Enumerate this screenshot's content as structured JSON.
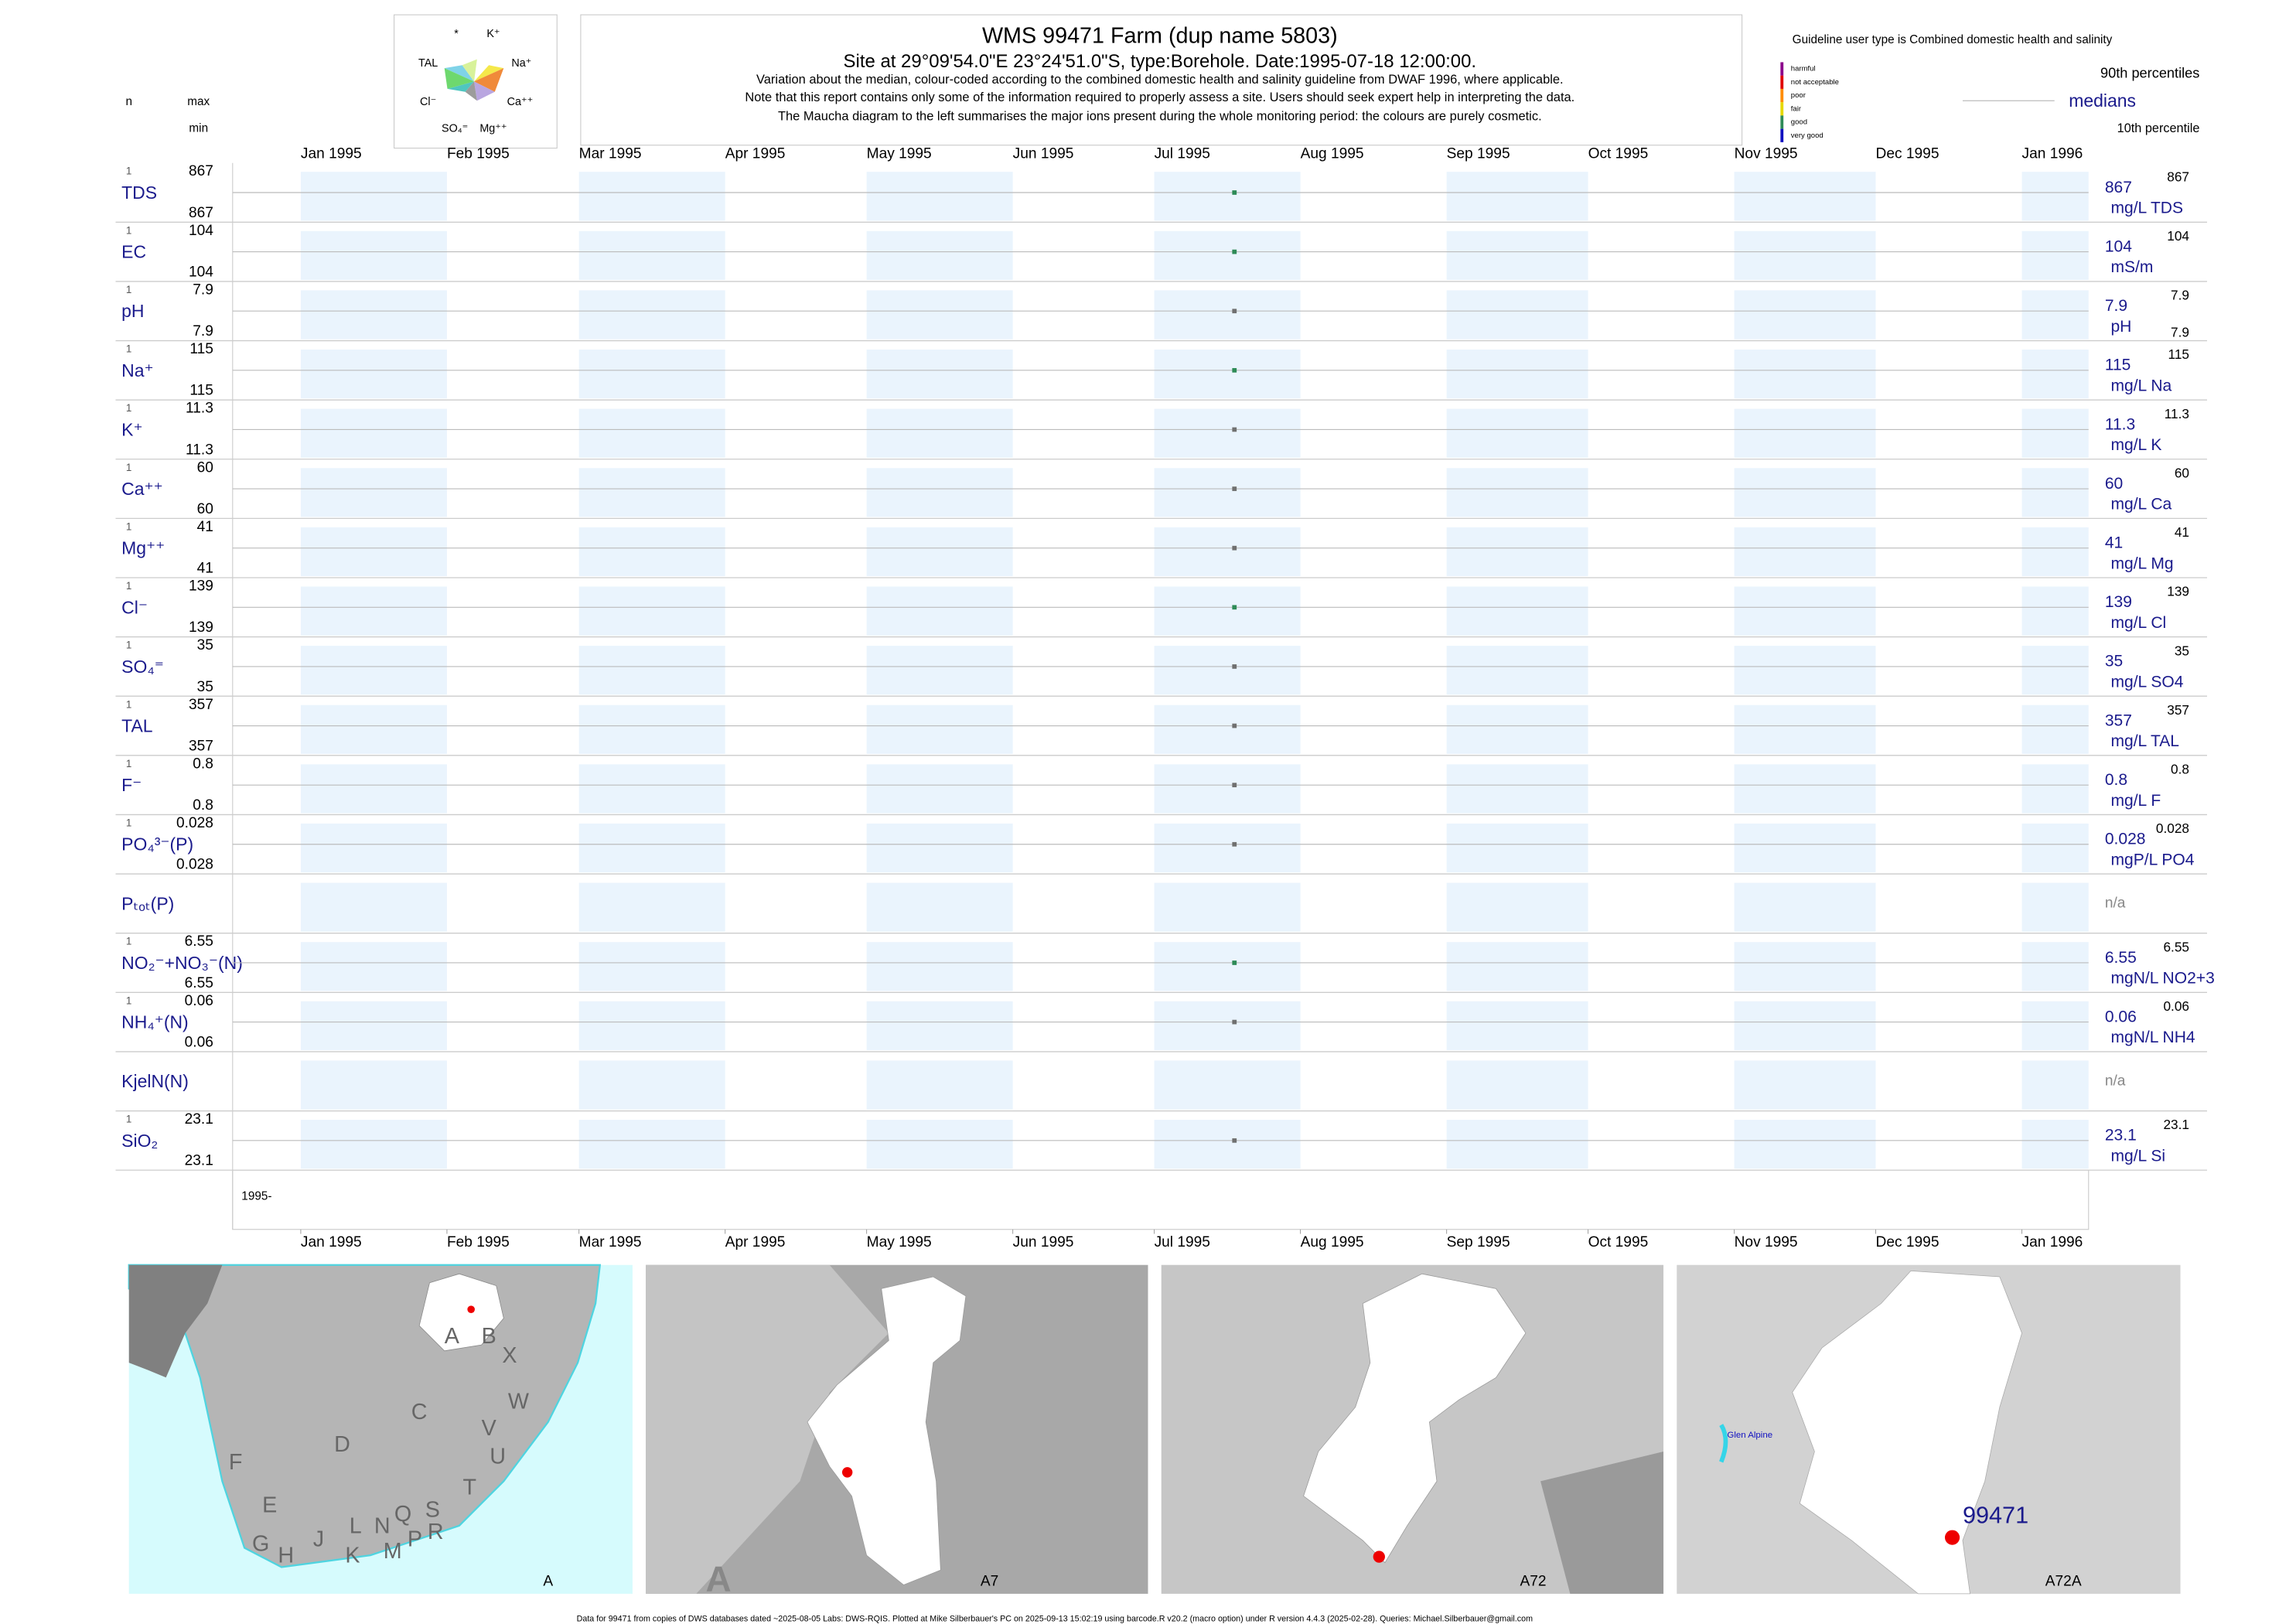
{
  "header": {
    "title": "WMS 99471  Farm (dup name 5803)",
    "subtitle": "Site at 29°09'54.0\"E 23°24'51.0\"S, type:Borehole. Date:1995-07-18 12:00:00.",
    "notes": [
      "Variation about the median,  colour-coded according to the combined domestic health and salinity guideline from DWAF 1996, where applicable.",
      "Note that this report contains only some of the information required to properly assess a site. Users should seek expert help in interpreting the data.",
      "The Maucha diagram to the left summarises the major ions present during the whole monitoring period: the colours are purely cosmetic."
    ],
    "n_label": "n",
    "max_label": "max",
    "min_label": "min",
    "maucha_labels": [
      "*",
      "K⁺",
      "TAL",
      "Na⁺",
      "Cl⁻",
      "Ca⁺⁺",
      "SO₄⁼",
      "Mg⁺⁺"
    ]
  },
  "legend": {
    "guideline": "Guideline user type is Combined domestic health and salinity",
    "classes": [
      {
        "name": "harmful",
        "color": "#8b008b"
      },
      {
        "name": "not acceptable",
        "color": "#e00000"
      },
      {
        "name": "poor",
        "color": "#ff8c00"
      },
      {
        "name": "fair",
        "color": "#e6d800"
      },
      {
        "name": "good",
        "color": "#2e8b57"
      },
      {
        "name": "very good",
        "color": "#1010c0"
      }
    ],
    "p90": "90th percentiles",
    "median": "medians",
    "p10": "10th percentile"
  },
  "x_axis": {
    "xlim": [
      "1995-01",
      "1996-01"
    ],
    "xticks": [
      {
        "value": "1995-01",
        "label": "Jan 1995"
      },
      {
        "value": "1995-02",
        "label": "Feb 1995"
      },
      {
        "value": "1995-03",
        "label": "Mar 1995"
      },
      {
        "value": "1995-04",
        "label": "Apr 1995"
      },
      {
        "value": "1995-05",
        "label": "May 1995"
      },
      {
        "value": "1995-06",
        "label": "Jun 1995"
      },
      {
        "value": "1995-07",
        "label": "Jul 1995"
      },
      {
        "value": "1995-08",
        "label": "Aug 1995"
      },
      {
        "value": "1995-09",
        "label": "Sep 1995"
      },
      {
        "value": "1995-10",
        "label": "Oct 1995"
      },
      {
        "value": "1995-11",
        "label": "Nov 1995"
      },
      {
        "value": "1995-12",
        "label": "Dec 1995"
      },
      {
        "value": "1996-01",
        "label": "Jan 1996"
      }
    ],
    "label": "1995-"
  },
  "chart_data": [
    {
      "type": "scatter",
      "label": "TDS",
      "n": 1,
      "max": 867,
      "min": 867,
      "x": [
        "1995-07-18"
      ],
      "values": [
        867
      ],
      "color": "#2e8b57",
      "median": 867,
      "unit": "mg/L TDS",
      "p90": 867
    },
    {
      "type": "scatter",
      "label": "EC",
      "n": 1,
      "max": 104,
      "min": 104,
      "x": [
        "1995-07-18"
      ],
      "values": [
        104
      ],
      "color": "#2e8b57",
      "median": 104,
      "unit": "mS/m",
      "p90": 104
    },
    {
      "type": "scatter",
      "label": "pH",
      "n": 1,
      "max": 7.9,
      "min": 7.9,
      "x": [
        "1995-07-18"
      ],
      "values": [
        7.9
      ],
      "color": "#707070",
      "median": 7.9,
      "unit": "pH",
      "p90": 7.9,
      "p10": 7.9
    },
    {
      "type": "scatter",
      "label": "Na⁺",
      "n": 1,
      "max": 115,
      "min": 115,
      "x": [
        "1995-07-18"
      ],
      "values": [
        115
      ],
      "color": "#2e8b57",
      "median": 115,
      "unit": "mg/L Na",
      "p90": 115
    },
    {
      "type": "scatter",
      "label": "K⁺",
      "n": 1,
      "max": 11.3,
      "min": 11.3,
      "x": [
        "1995-07-18"
      ],
      "values": [
        11.3
      ],
      "color": "#707070",
      "median": 11.3,
      "unit": "mg/L K",
      "p90": 11.3
    },
    {
      "type": "scatter",
      "label": "Ca⁺⁺",
      "n": 1,
      "max": 60,
      "min": 60,
      "x": [
        "1995-07-18"
      ],
      "values": [
        60
      ],
      "color": "#707070",
      "median": 60,
      "unit": "mg/L Ca",
      "p90": 60
    },
    {
      "type": "scatter",
      "label": "Mg⁺⁺",
      "n": 1,
      "max": 41,
      "min": 41,
      "x": [
        "1995-07-18"
      ],
      "values": [
        41
      ],
      "color": "#707070",
      "median": 41,
      "unit": "mg/L Mg",
      "p90": 41
    },
    {
      "type": "scatter",
      "label": "Cl⁻",
      "n": 1,
      "max": 139,
      "min": 139,
      "x": [
        "1995-07-18"
      ],
      "values": [
        139
      ],
      "color": "#2e8b57",
      "median": 139,
      "unit": "mg/L Cl",
      "p90": 139
    },
    {
      "type": "scatter",
      "label": "SO₄⁼",
      "n": 1,
      "max": 35,
      "min": 35,
      "x": [
        "1995-07-18"
      ],
      "values": [
        35
      ],
      "color": "#707070",
      "median": 35,
      "unit": "mg/L SO4",
      "p90": 35
    },
    {
      "type": "scatter",
      "label": "TAL",
      "n": 1,
      "max": 357,
      "min": 357,
      "x": [
        "1995-07-18"
      ],
      "values": [
        357
      ],
      "color": "#707070",
      "median": 357,
      "unit": "mg/L TAL",
      "p90": 357
    },
    {
      "type": "scatter",
      "label": "F⁻",
      "n": 1,
      "max": 0.8,
      "min": 0.8,
      "x": [
        "1995-07-18"
      ],
      "values": [
        0.8
      ],
      "color": "#707070",
      "median": 0.8,
      "unit": "mg/L F",
      "p90": 0.8
    },
    {
      "type": "scatter",
      "label": "PO₄³⁻(P)",
      "n": 1,
      "max": 0.028,
      "min": 0.028,
      "x": [
        "1995-07-18"
      ],
      "values": [
        0.028
      ],
      "color": "#707070",
      "median": 0.028,
      "unit": "mgP/L PO4",
      "p90": 0.028
    },
    {
      "type": "scatter",
      "label": "Pₜₒₜ(P)",
      "median_label": "n/a"
    },
    {
      "type": "scatter",
      "label": "NO₂⁻+NO₃⁻(N)",
      "n": 1,
      "max": 6.55,
      "min": 6.55,
      "x": [
        "1995-07-18"
      ],
      "values": [
        6.55
      ],
      "color": "#2e8b57",
      "median": 6.55,
      "unit": "mgN/L NO2+3",
      "p90": 6.55
    },
    {
      "type": "scatter",
      "label": "NH₄⁺(N)",
      "n": 1,
      "max": 0.06,
      "min": 0.06,
      "x": [
        "1995-07-18"
      ],
      "values": [
        0.06
      ],
      "color": "#707070",
      "median": 0.06,
      "unit": "mgN/L NH4",
      "p90": 0.06
    },
    {
      "type": "scatter",
      "label": "KjelN(N)",
      "median_label": "n/a"
    },
    {
      "type": "scatter",
      "label": "SiO₂",
      "n": 1,
      "max": 23.1,
      "min": 23.1,
      "x": [
        "1995-07-18"
      ],
      "values": [
        23.1
      ],
      "color": "#707070",
      "median": 23.1,
      "unit": "mg/L Si",
      "p90": 23.1
    }
  ],
  "maps": [
    {
      "label": "A",
      "letters": [
        "A",
        "B",
        "X",
        "C",
        "W",
        "D",
        "V",
        "U",
        "F",
        "T",
        "E",
        "S",
        "R",
        "Q",
        "N",
        "L",
        "J",
        "G",
        "H",
        "K",
        "M",
        "P"
      ]
    },
    {
      "label": "A7",
      "corner": "A"
    },
    {
      "label": "A72"
    },
    {
      "label": "A72A",
      "site": "99471",
      "place": "Glen Alpine"
    }
  ],
  "footer": "Data for 99471 from copies of DWS databases dated ~2025-08-05 Labs: DWS-RQIS. Plotted at Mike Silberbauer's PC on 2025-09-13 15:02:19 using barcode.R v20.2 (macro option) under R version 4.4.3 (2025-02-28). Queries: Michael.Silberbauer@gmail.com"
}
